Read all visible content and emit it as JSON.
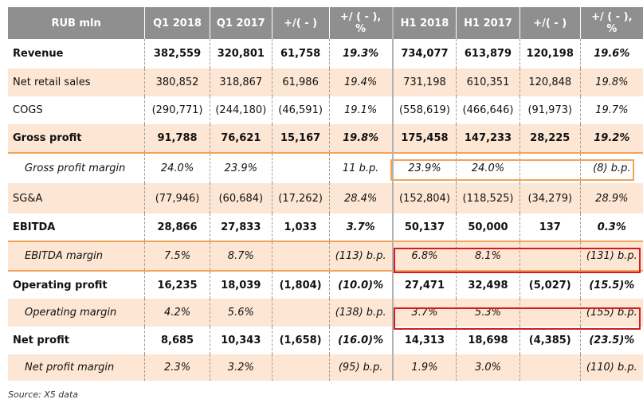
{
  "header": [
    "RUB mln",
    "Q1 2018",
    "Q1 2017",
    "+/( - )",
    "+/ ( - ),\n%",
    "H1 2018",
    "H1 2017",
    "+/( - )",
    "+/ ( - ),\n%"
  ],
  "rows": [
    {
      "label": "Revenue",
      "values": [
        "382,559",
        "320,801",
        "61,758",
        "19.3%",
        "734,077",
        "613,879",
        "120,198",
        "19.6%"
      ]
    },
    {
      "label": "Net retail sales",
      "values": [
        "380,852",
        "318,867",
        "61,986",
        "19.4%",
        "731,198",
        "610,351",
        "120,848",
        "19.8%"
      ]
    },
    {
      "label": "COGS",
      "values": [
        "(290,771)",
        "(244,180)",
        "(46,591)",
        "19.1%",
        "(558,619)",
        "(466,646)",
        "(91,973)",
        "19.7%"
      ]
    },
    {
      "label": "Gross profit",
      "values": [
        "91,788",
        "76,621",
        "15,167",
        "19.8%",
        "175,458",
        "147,233",
        "28,225",
        "19.2%"
      ]
    },
    {
      "label": "Gross profit margin",
      "values": [
        "24.0%",
        "23.9%",
        "",
        "11 b.p.",
        "23.9%",
        "24.0%",
        "",
        "(8) b.p."
      ]
    },
    {
      "label": "SG&A",
      "values": [
        "(77,946)",
        "(60,684)",
        "(17,262)",
        "28.4%",
        "(152,804)",
        "(118,525)",
        "(34,279)",
        "28.9%"
      ]
    },
    {
      "label": "EBITDA",
      "values": [
        "28,866",
        "27,833",
        "1,033",
        "3.7%",
        "50,137",
        "50,000",
        "137",
        "0.3%"
      ]
    },
    {
      "label": "EBITDA margin",
      "values": [
        "7.5%",
        "8.7%",
        "",
        "(113) b.p.",
        "6.8%",
        "8.1%",
        "",
        "(131) b.p."
      ]
    },
    {
      "label": "Operating profit",
      "values": [
        "16,235",
        "18,039",
        "(1,804)",
        "(10.0)%",
        "27,471",
        "32,498",
        "(5,027)",
        "(15.5)%"
      ]
    },
    {
      "label": "Operating margin",
      "values": [
        "4.2%",
        "5.6%",
        "",
        "(138) b.p.",
        "3.7%",
        "5.3%",
        "",
        "(155) b.p."
      ]
    },
    {
      "label": "Net profit",
      "values": [
        "8,685",
        "10,343",
        "(1,658)",
        "(16.0)%",
        "14,313",
        "18,698",
        "(4,385)",
        "(23.5)%"
      ]
    },
    {
      "label": "Net profit margin",
      "values": [
        "2.3%",
        "3.2%",
        "",
        "(95) b.p.",
        "1.9%",
        "3.0%",
        "",
        "(110) b.p."
      ]
    }
  ],
  "source": "Source: X5 data",
  "colors": {
    "header_bg": "#8f8f8f",
    "row_peach": "#fde6d3",
    "highlight_orange": "#f2a35c",
    "highlight_red": "#d41c1c"
  }
}
